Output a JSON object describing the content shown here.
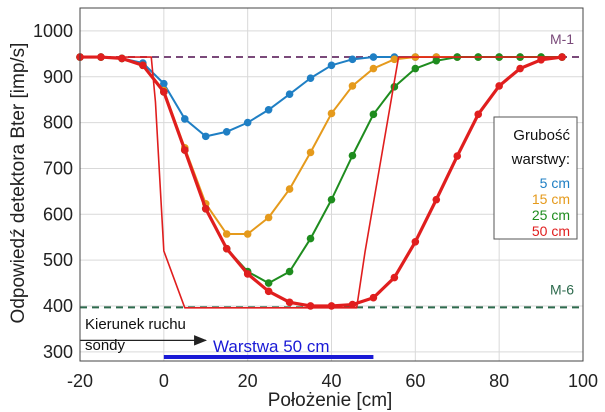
{
  "chart_data": {
    "type": "line",
    "title": "",
    "xlabel": "Położenie [cm]",
    "ylabel": "Odpowiedź detektora Bter [imp/s]",
    "xlim": [
      -20,
      100
    ],
    "ylim": [
      280,
      1050
    ],
    "xticks": [
      -20,
      0,
      20,
      40,
      60,
      80,
      100
    ],
    "yticks": [
      300,
      400,
      500,
      600,
      700,
      800,
      900,
      1000
    ],
    "grid": true,
    "legend": {
      "title_lines": [
        "Grubość",
        "warstwy:"
      ],
      "placement": "right"
    },
    "series": [
      {
        "name": "5 cm",
        "color": "#1f7fc4",
        "markers": true,
        "x": [
          -20,
          -15,
          -10,
          -5,
          0,
          5,
          10,
          15,
          20,
          25,
          30,
          35,
          40,
          45,
          50,
          55,
          60,
          65,
          70,
          75,
          80,
          85,
          90,
          95
        ],
        "y": [
          943,
          943,
          940,
          930,
          885,
          808,
          770,
          780,
          800,
          828,
          862,
          897,
          925,
          938,
          943,
          943,
          943,
          943,
          943,
          943,
          943,
          943,
          943,
          943
        ]
      },
      {
        "name": "15 cm",
        "color": "#e59a1c",
        "markers": true,
        "x": [
          -20,
          -15,
          -10,
          -5,
          0,
          5,
          10,
          15,
          20,
          25,
          30,
          35,
          40,
          45,
          50,
          55,
          60,
          65,
          70,
          75,
          80,
          85,
          90,
          95
        ],
        "y": [
          943,
          943,
          940,
          925,
          870,
          745,
          623,
          557,
          557,
          593,
          655,
          735,
          820,
          880,
          918,
          938,
          943,
          943,
          943,
          943,
          943,
          943,
          943,
          943
        ]
      },
      {
        "name": "25 cm",
        "color": "#1e8c1e",
        "markers": true,
        "x": [
          -20,
          -15,
          -10,
          -5,
          0,
          5,
          10,
          15,
          20,
          25,
          30,
          35,
          40,
          45,
          50,
          55,
          60,
          65,
          70,
          75,
          80,
          85,
          90,
          95
        ],
        "y": [
          943,
          943,
          940,
          925,
          867,
          740,
          612,
          525,
          475,
          450,
          475,
          547,
          632,
          728,
          818,
          878,
          918,
          935,
          943,
          943,
          943,
          943,
          943,
          943
        ]
      },
      {
        "name": "50 cm",
        "color": "#e01e1e",
        "markers": true,
        "x": [
          -20,
          -15,
          -10,
          -5,
          0,
          5,
          10,
          15,
          20,
          25,
          30,
          35,
          40,
          45,
          50,
          55,
          60,
          65,
          70,
          75,
          80,
          85,
          90,
          95
        ],
        "y": [
          943,
          943,
          940,
          925,
          867,
          740,
          612,
          525,
          470,
          432,
          408,
          400,
          400,
          403,
          418,
          462,
          540,
          632,
          727,
          818,
          880,
          918,
          937,
          943
        ]
      },
      {
        "name": "",
        "color": "#e01e1e",
        "markers": false,
        "x": [
          -20,
          -3,
          -2,
          0,
          5,
          46,
          48,
          56,
          60,
          96
        ],
        "y": [
          943,
          943,
          845,
          520,
          396,
          396,
          518,
          943,
          943,
          943
        ]
      }
    ],
    "reference_lines": [
      {
        "label": "M-1",
        "y": 943,
        "color": "#7a4a7a"
      },
      {
        "label": "M-6",
        "y": 397,
        "color": "#2e6b4e"
      }
    ],
    "annotations": {
      "direction_line1": "Kierunek ruchu",
      "direction_line2": "sondy",
      "arrow_from_x": -20,
      "arrow_to_x": 10,
      "arrow_y": 325,
      "layer_label": "Warstwa 50 cm",
      "layer_from_x": 0,
      "layer_to_x": 50,
      "layer_y": 285
    }
  }
}
